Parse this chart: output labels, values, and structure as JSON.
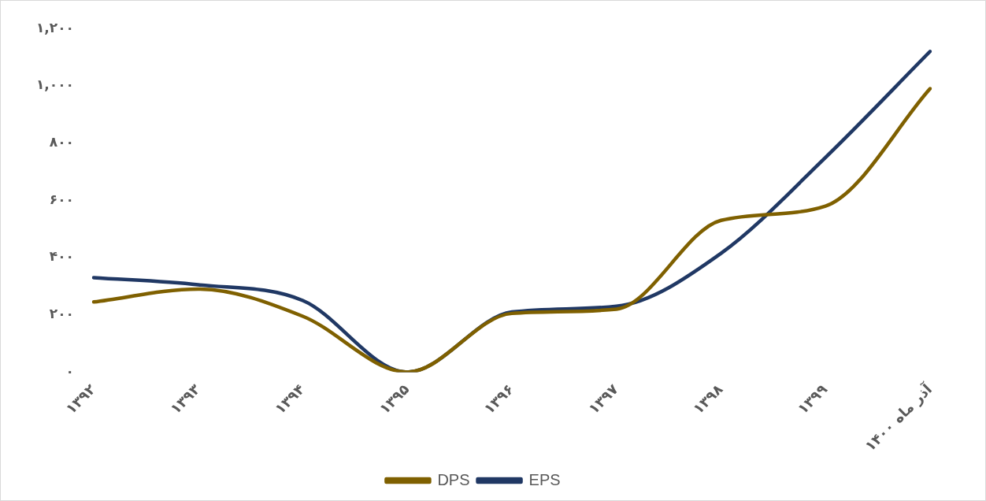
{
  "chart_data": {
    "type": "line",
    "categories": [
      "۱۳۹۲",
      "۱۳۹۳",
      "۱۳۹۴",
      "۱۳۹۵",
      "۱۳۹۶",
      "۱۳۹۷",
      "۱۳۹۸",
      "۱۳۹۹",
      "آذر ماه ۱۴۰۰"
    ],
    "series": [
      {
        "name": "DPS",
        "color": "#7f6000",
        "values": [
          245,
          290,
          195,
          0,
          205,
          220,
          530,
          580,
          990
        ]
      },
      {
        "name": "EPS",
        "color": "#203864",
        "values": [
          330,
          305,
          250,
          0,
          210,
          230,
          415,
          750,
          1120
        ]
      }
    ],
    "ylim": [
      0,
      1200
    ],
    "yticks": [
      {
        "value": 0,
        "label": "۰"
      },
      {
        "value": 200,
        "label": "۲۰۰"
      },
      {
        "value": 400,
        "label": "۴۰۰"
      },
      {
        "value": 600,
        "label": "۶۰۰"
      },
      {
        "value": 800,
        "label": "۸۰۰"
      },
      {
        "value": 1000,
        "label": "۱,۰۰۰"
      },
      {
        "value": 1200,
        "label": "۱,۲۰۰"
      }
    ],
    "grid": false,
    "legend": "bottom",
    "marker": "none",
    "line_style": "solid"
  }
}
